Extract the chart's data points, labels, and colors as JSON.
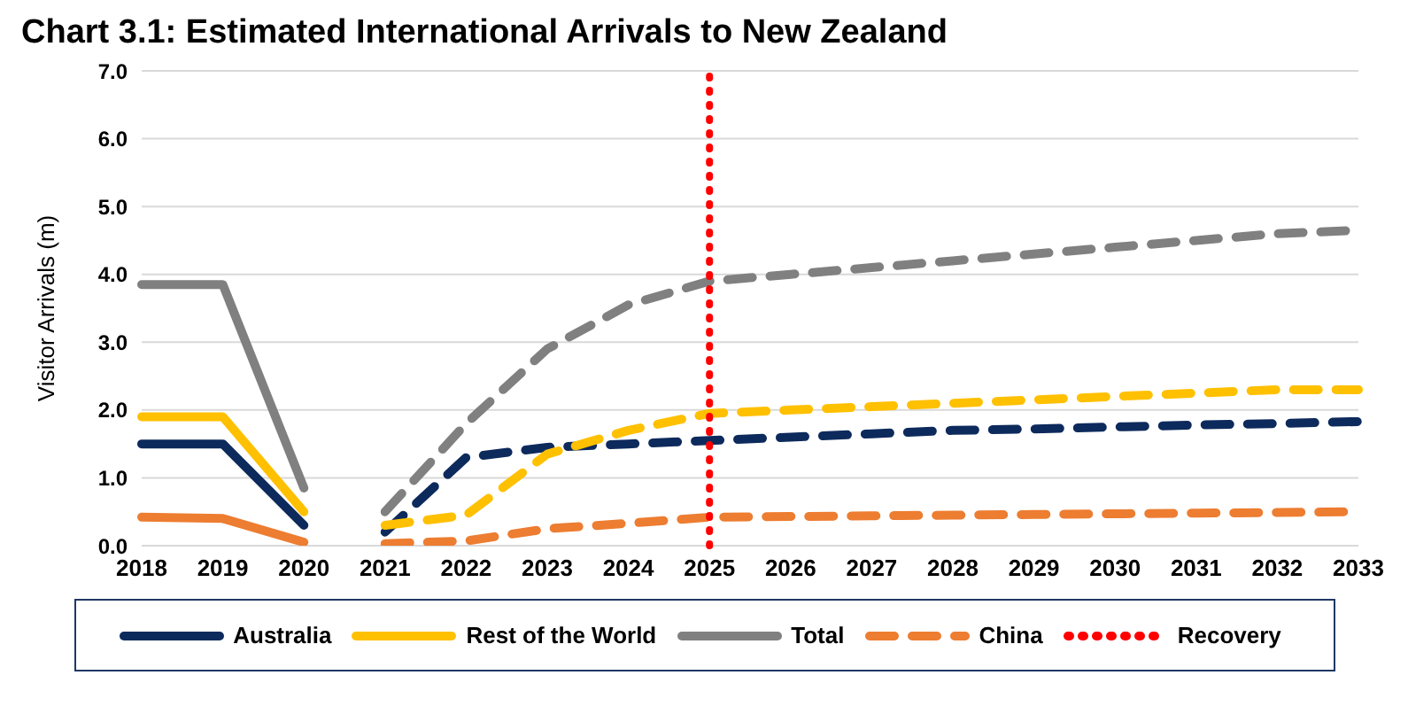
{
  "chart_data": {
    "type": "line",
    "title": "Chart 3.1: Estimated International Arrivals to New Zealand",
    "ylabel": "Visitor Arrivals (m)",
    "categories": [
      "2018",
      "2019",
      "2020",
      "2021",
      "2022",
      "2023",
      "2024",
      "2025",
      "2026",
      "2027",
      "2028",
      "2029",
      "2030",
      "2031",
      "2032",
      "2033"
    ],
    "series": [
      {
        "name": "Australia",
        "color": "#0d2a5c",
        "line_style": "solid",
        "values": [
          1.5,
          1.5,
          0.3,
          null,
          null,
          null,
          null,
          null,
          null,
          null,
          null,
          null,
          null,
          null,
          null,
          null
        ]
      },
      {
        "name": "Rest of the World",
        "color": "#ffc000",
        "line_style": "solid",
        "values": [
          1.9,
          1.9,
          0.5,
          null,
          null,
          null,
          null,
          null,
          null,
          null,
          null,
          null,
          null,
          null,
          null,
          null
        ]
      },
      {
        "name": "Total",
        "color": "#808080",
        "line_style": "solid",
        "values": [
          3.85,
          3.85,
          0.85,
          null,
          null,
          null,
          null,
          null,
          null,
          null,
          null,
          null,
          null,
          null,
          null,
          null
        ]
      },
      {
        "name": "China",
        "color": "#ed7d31",
        "line_style": "dashed",
        "values": [
          null,
          null,
          null,
          0.03,
          0.07,
          0.25,
          0.33,
          0.42,
          0.43,
          0.44,
          0.45,
          0.46,
          0.47,
          0.48,
          0.49,
          0.5
        ]
      },
      {
        "color": "#0d2a5c",
        "line_style": "dashed",
        "values": [
          null,
          null,
          null,
          0.2,
          1.3,
          1.45,
          1.5,
          1.55,
          1.6,
          1.65,
          1.7,
          1.72,
          1.75,
          1.78,
          1.8,
          1.83
        ]
      },
      {
        "color": "#ffc000",
        "line_style": "dashed",
        "values": [
          null,
          null,
          null,
          0.3,
          0.45,
          1.35,
          1.7,
          1.95,
          2.0,
          2.05,
          2.1,
          2.15,
          2.2,
          2.25,
          2.3,
          2.3
        ]
      },
      {
        "color": "#808080",
        "line_style": "dashed",
        "values": [
          null,
          null,
          null,
          0.5,
          1.8,
          2.9,
          3.55,
          3.9,
          4.0,
          4.1,
          4.2,
          4.3,
          4.4,
          4.5,
          4.6,
          4.65
        ]
      },
      {
        "color": "#ed7d31",
        "line_style": "solid",
        "values": [
          0.42,
          0.4,
          0.05,
          null,
          null,
          null,
          null,
          null,
          null,
          null,
          null,
          null,
          null,
          null,
          null,
          null
        ]
      }
    ],
    "ref_lines": [
      {
        "axis": "x",
        "value": "2025",
        "label": "Recovery",
        "color": "#ff0000",
        "line_style": "dotted"
      }
    ],
    "ylim": [
      0,
      7
    ],
    "yticks": [
      {
        "value": 0,
        "label": "0.0"
      },
      {
        "value": 1,
        "label": "1.0"
      },
      {
        "value": 2,
        "label": "2.0"
      },
      {
        "value": 3,
        "label": "3.0"
      },
      {
        "value": 4,
        "label": "4.0"
      },
      {
        "value": 5,
        "label": "5.0"
      },
      {
        "value": 6,
        "label": "6.0"
      },
      {
        "value": 7,
        "label": "7.0"
      }
    ],
    "grid": "y",
    "legend": "bottom",
    "marker": "none"
  }
}
